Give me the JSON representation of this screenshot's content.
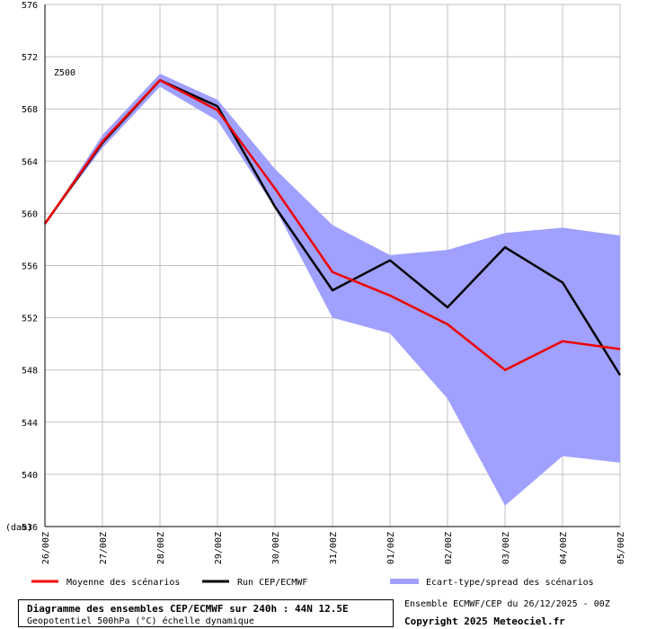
{
  "chart_data": {
    "type": "line",
    "label": "Z500",
    "unit": "(dam)",
    "ylim": [
      536,
      576
    ],
    "yticks": [
      536,
      540,
      544,
      548,
      552,
      556,
      560,
      564,
      568,
      572,
      576
    ],
    "categories": [
      "26/00Z",
      "27/00Z",
      "28/00Z",
      "29/00Z",
      "30/00Z",
      "31/00Z",
      "01/00Z",
      "02/00Z",
      "03/00Z",
      "04/00Z",
      "05/00Z"
    ],
    "grid": true,
    "legend_position": "bottom",
    "series": [
      {
        "name": "Moyenne des scénarios",
        "color": "#ee0000",
        "values": [
          559.2,
          565.5,
          570.2,
          567.9,
          561.9,
          555.5,
          553.7,
          551.5,
          548.0,
          550.2,
          549.6
        ]
      },
      {
        "name": "Run CEP/ECMWF",
        "color": "#000000",
        "values": [
          559.2,
          565.4,
          570.2,
          568.2,
          560.5,
          554.1,
          556.4,
          552.8,
          557.4,
          554.7,
          547.6
        ]
      }
    ],
    "spread": {
      "name": "Ecart-type/spread des scénarios",
      "color": "#a0a0ff",
      "upper": [
        559.2,
        566.0,
        570.7,
        568.7,
        563.4,
        559.1,
        556.8,
        557.2,
        558.5,
        558.9,
        558.3
      ],
      "lower": [
        559.2,
        565.0,
        569.7,
        567.1,
        560.4,
        552.0,
        550.8,
        545.8,
        537.6,
        541.4,
        540.9
      ]
    }
  },
  "footer": {
    "title": "Diagramme des ensembles CEP/ECMWF sur 240h : 44N 12.5E",
    "subtitle": "Geopotentiel 500hPa (°C) échelle dynamique",
    "run_info": "Ensemble ECMWF/CEP du 26/12/2025 - 00Z",
    "copyright": "Copyright 2025 Meteociel.fr"
  }
}
